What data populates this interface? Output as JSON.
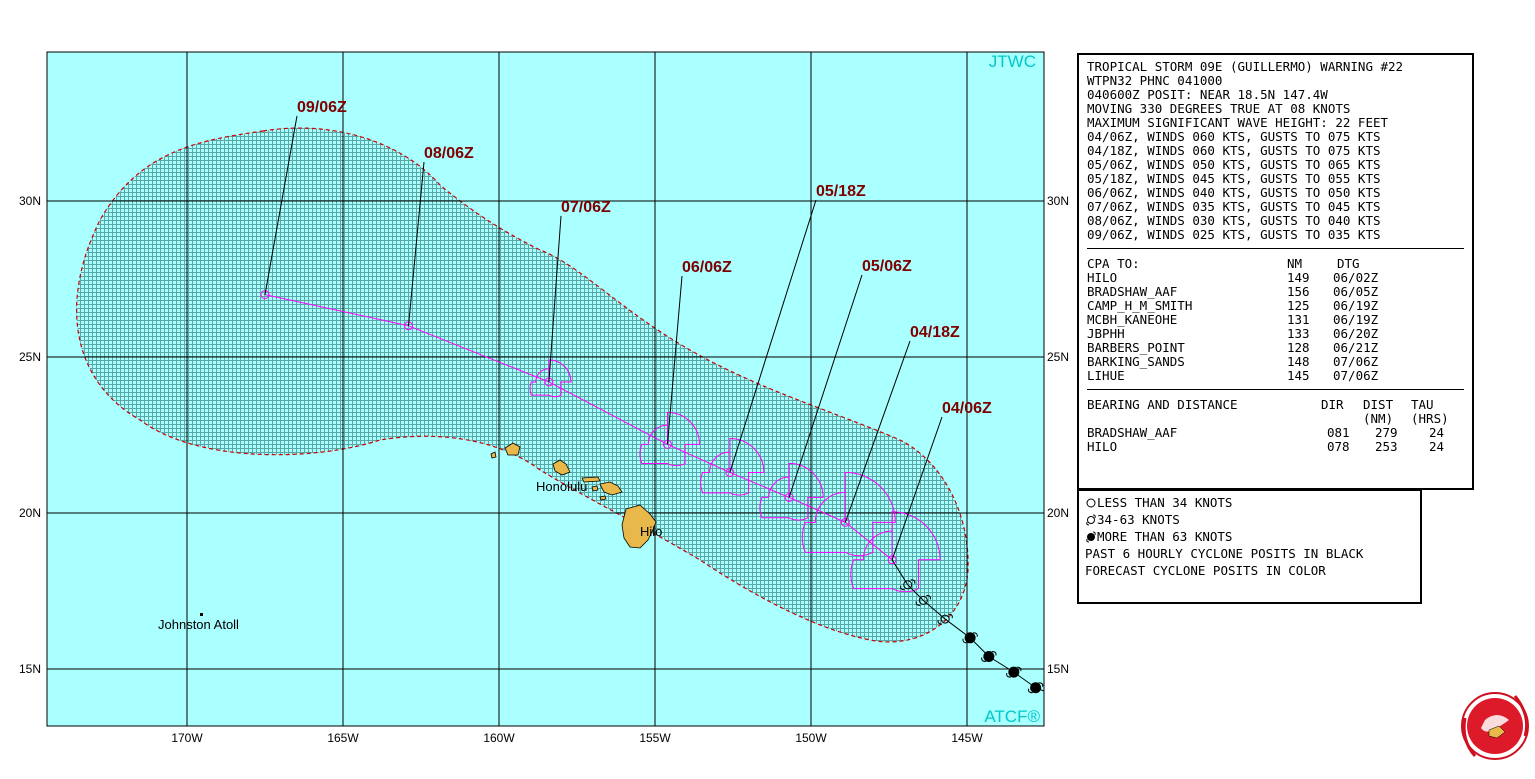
{
  "map": {
    "credit_top": "JTWC",
    "credit_bottom": "ATCF®",
    "lon_labels": [
      "170W",
      "165W",
      "160W",
      "155W",
      "150W",
      "145W"
    ],
    "lat_labels": [
      "30N",
      "25N",
      "20N",
      "15N"
    ],
    "places": [
      {
        "name": "Honolulu",
        "lon": -157.9,
        "lat": 21.3
      },
      {
        "name": "Hilo",
        "lon": -155.1,
        "lat": 19.7
      },
      {
        "name": "Johnston Atoll",
        "lon": -169.5,
        "lat": 16.7
      }
    ],
    "forecast_track": [
      {
        "label": "04/06Z",
        "lon": -147.4,
        "lat": 18.5
      },
      {
        "label": "04/18Z",
        "lon": -148.9,
        "lat": 19.7
      },
      {
        "label": "05/06Z",
        "lon": -150.7,
        "lat": 20.5
      },
      {
        "label": "05/18Z",
        "lon": -152.6,
        "lat": 21.3
      },
      {
        "label": "06/06Z",
        "lon": -154.6,
        "lat": 22.2
      },
      {
        "label": "07/06Z",
        "lon": -158.4,
        "lat": 24.2
      },
      {
        "label": "08/06Z",
        "lon": -162.9,
        "lat": 26.0
      },
      {
        "label": "09/06Z",
        "lon": -167.5,
        "lat": 27.0
      }
    ],
    "past_track": [
      {
        "lon": -146.9,
        "lat": 17.7,
        "intensity": "34-63"
      },
      {
        "lon": -146.4,
        "lat": 17.2,
        "intensity": "34-63"
      },
      {
        "lon": -145.7,
        "lat": 16.6,
        "intensity": "34-63"
      },
      {
        "lon": -144.9,
        "lat": 16.0,
        "intensity": ">63"
      },
      {
        "lon": -144.3,
        "lat": 15.4,
        "intensity": ">63"
      },
      {
        "lon": -143.5,
        "lat": 14.9,
        "intensity": ">63"
      },
      {
        "lon": -142.8,
        "lat": 14.4,
        "intensity": ">63"
      }
    ],
    "colors": {
      "ocean": "#aaffff",
      "grid": "#000000",
      "land": "#e8b84a",
      "track": "#ff00ff",
      "label": "#800000",
      "cone": "#cc0000"
    }
  },
  "warning": {
    "header": [
      "TROPICAL STORM 09E (GUILLERMO) WARNING #22",
      "WTPN32 PHNC 041000",
      "040600Z POSIT: NEAR 18.5N 147.4W",
      "MOVING 330 DEGREES TRUE AT 08 KNOTS",
      "MAXIMUM SIGNIFICANT WAVE HEIGHT: 22 FEET",
      "04/06Z, WINDS 060 KTS, GUSTS TO 075 KTS",
      "04/18Z, WINDS 060 KTS, GUSTS TO 075 KTS",
      "05/06Z, WINDS 050 KTS, GUSTS TO 065 KTS",
      "05/18Z, WINDS 045 KTS, GUSTS TO 055 KTS",
      "06/06Z, WINDS 040 KTS, GUSTS TO 050 KTS",
      "07/06Z, WINDS 035 KTS, GUSTS TO 045 KTS",
      "08/06Z, WINDS 030 KTS, GUSTS TO 040 KTS",
      "09/06Z, WINDS 025 KTS, GUSTS TO 035 KTS"
    ],
    "cpa_title": "CPA TO:",
    "cpa_col_nm": "NM",
    "cpa_col_dtg": "DTG",
    "cpa_rows": [
      {
        "site": "HILO",
        "nm": "149",
        "dtg": "06/02Z"
      },
      {
        "site": "BRADSHAW_AAF",
        "nm": "156",
        "dtg": "06/05Z"
      },
      {
        "site": "CAMP_H_M_SMITH",
        "nm": "125",
        "dtg": "06/19Z"
      },
      {
        "site": "MCBH_KANEOHE",
        "nm": "131",
        "dtg": "06/19Z"
      },
      {
        "site": "JBPHH",
        "nm": "133",
        "dtg": "06/20Z"
      },
      {
        "site": "BARBERS_POINT",
        "nm": "128",
        "dtg": "06/21Z"
      },
      {
        "site": "BARKING_SANDS",
        "nm": "148",
        "dtg": "07/06Z"
      },
      {
        "site": "LIHUE",
        "nm": "145",
        "dtg": "07/06Z"
      }
    ],
    "bd_title": "BEARING AND DISTANCE",
    "bd_col_dir": "DIR",
    "bd_col_dist": "DIST",
    "bd_col_tau": "TAU",
    "bd_sub_dist": "(NM)",
    "bd_sub_tau": "(HRS)",
    "bd_rows": [
      {
        "site": "BRADSHAW_AAF",
        "dir": "081",
        "dist": "279",
        "tau": "24"
      },
      {
        "site": "HILO",
        "dir": "078",
        "dist": "253",
        "tau": "24"
      }
    ]
  },
  "legend": {
    "items": [
      "LESS THAN 34 KNOTS",
      "34-63 KNOTS",
      "MORE THAN 63 KNOTS",
      "PAST 6 HOURLY CYCLONE POSITS IN BLACK",
      "FORECAST CYCLONE POSITS IN COLOR"
    ]
  }
}
